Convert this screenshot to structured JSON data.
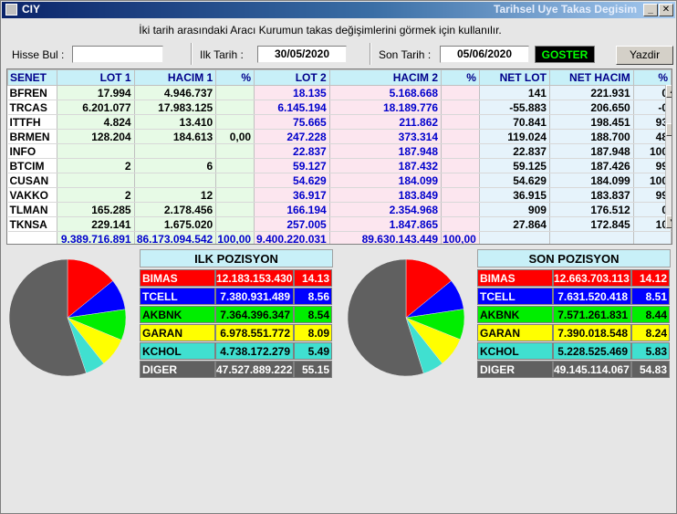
{
  "window": {
    "title": "CIY",
    "title_right": "Tarihsel Uye Takas Degisim"
  },
  "description": "İki tarih arasındaki  Aracı Kurumun takas değişimlerini görmek için kullanılır.",
  "toolbar": {
    "hisse_label": "Hisse Bul :",
    "hisse_value": "",
    "ilk_label": "Ilk Tarih :",
    "ilk_value": "30/05/2020",
    "son_label": "Son Tarih :",
    "son_value": "05/06/2020",
    "goster_label": "GOSTER",
    "yazdir_label": "Yazdir"
  },
  "grid": {
    "headers": [
      "SENET",
      "LOT 1",
      "HACIM 1",
      "%",
      "LOT 2",
      "HACIM 2",
      "%",
      "NET LOT",
      "NET HACIM",
      "%"
    ],
    "rows": [
      [
        "BFREN",
        "17.994",
        "4.946.737",
        "",
        "18.135",
        "5.168.668",
        "",
        "141",
        "221.931",
        "0"
      ],
      [
        "TRCAS",
        "6.201.077",
        "17.983.125",
        "",
        "6.145.194",
        "18.189.776",
        "",
        "-55.883",
        "206.650",
        "-0"
      ],
      [
        "ITTFH",
        "4.824",
        "13.410",
        "",
        "75.665",
        "211.862",
        "",
        "70.841",
        "198.451",
        "93"
      ],
      [
        "BRMEN",
        "128.204",
        "184.613",
        "0,00",
        "247.228",
        "373.314",
        "",
        "119.024",
        "188.700",
        "48"
      ],
      [
        "INFO",
        "",
        "",
        "",
        "22.837",
        "187.948",
        "",
        "22.837",
        "187.948",
        "100"
      ],
      [
        "BTCIM",
        "2",
        "6",
        "",
        "59.127",
        "187.432",
        "",
        "59.125",
        "187.426",
        "99"
      ],
      [
        "CUSAN",
        "",
        "",
        "",
        "54.629",
        "184.099",
        "",
        "54.629",
        "184.099",
        "100"
      ],
      [
        "VAKKO",
        "2",
        "12",
        "",
        "36.917",
        "183.849",
        "",
        "36.915",
        "183.837",
        "99"
      ],
      [
        "TLMAN",
        "165.285",
        "2.178.456",
        "",
        "166.194",
        "2.354.968",
        "",
        "909",
        "176.512",
        "0"
      ],
      [
        "TKNSA",
        "229.141",
        "1.675.020",
        "",
        "257.005",
        "1.847.865",
        "",
        "27.864",
        "172.845",
        "10"
      ]
    ],
    "totals": [
      "",
      "9.389.716.891",
      "86.173.094.542",
      "100,00",
      "9.400.220.031",
      "89.630.143.449",
      "100,00",
      "",
      "",
      ""
    ]
  },
  "ilk_pozisyon": {
    "title": "ILK POZISYON",
    "rows": [
      {
        "name": "BIMAS",
        "value": "12.183.153.430",
        "pct": "14.13",
        "percent": 14.13,
        "color": "#ff0000",
        "text": "#ffffff"
      },
      {
        "name": "TCELL",
        "value": "7.380.931.489",
        "pct": "8.56",
        "percent": 8.56,
        "color": "#0000ff",
        "text": "#ffffff"
      },
      {
        "name": "AKBNK",
        "value": "7.364.396.347",
        "pct": "8.54",
        "percent": 8.54,
        "color": "#00ee00",
        "text": "#000000"
      },
      {
        "name": "GARAN",
        "value": "6.978.551.772",
        "pct": "8.09",
        "percent": 8.09,
        "color": "#ffff00",
        "text": "#000000"
      },
      {
        "name": "KCHOL",
        "value": "4.738.172.279",
        "pct": "5.49",
        "percent": 5.49,
        "color": "#40e0d0",
        "text": "#000000"
      },
      {
        "name": "DIGER",
        "value": "47.527.889.222",
        "pct": "55.15",
        "percent": 55.15,
        "color": "#606060",
        "text": "#ffffff"
      }
    ]
  },
  "son_pozisyon": {
    "title": "SON POZISYON",
    "rows": [
      {
        "name": "BIMAS",
        "value": "12.663.703.113",
        "pct": "14.12",
        "percent": 14.12,
        "color": "#ff0000",
        "text": "#ffffff"
      },
      {
        "name": "TCELL",
        "value": "7.631.520.418",
        "pct": "8.51",
        "percent": 8.51,
        "color": "#0000ff",
        "text": "#ffffff"
      },
      {
        "name": "AKBNK",
        "value": "7.571.261.831",
        "pct": "8.44",
        "percent": 8.44,
        "color": "#00ee00",
        "text": "#000000"
      },
      {
        "name": "GARAN",
        "value": "7.390.018.548",
        "pct": "8.24",
        "percent": 8.24,
        "color": "#ffff00",
        "text": "#000000"
      },
      {
        "name": "KCHOL",
        "value": "5.228.525.469",
        "pct": "5.83",
        "percent": 5.83,
        "color": "#40e0d0",
        "text": "#000000"
      },
      {
        "name": "DIGER",
        "value": "49.145.114.067",
        "pct": "54.83",
        "percent": 54.83,
        "color": "#606060",
        "text": "#ffffff"
      }
    ]
  }
}
